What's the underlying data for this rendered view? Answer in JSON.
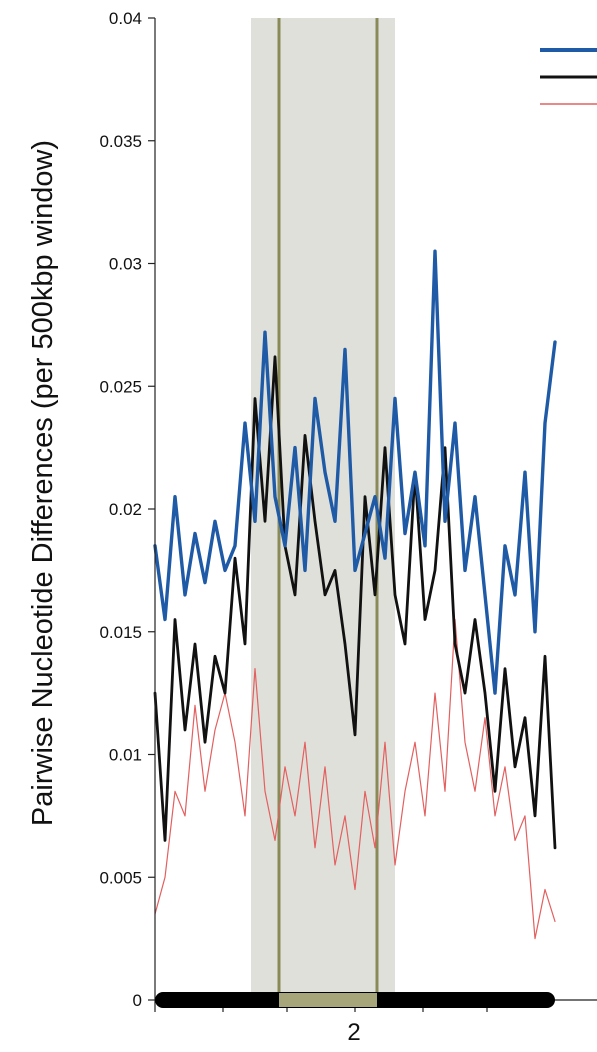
{
  "chart_data": {
    "type": "line",
    "title": "",
    "ylabel": "Pairwise Nucleotide Differences (per 500kbp window)",
    "xlabel": "",
    "ylim": [
      0,
      0.04
    ],
    "yticks": [
      0,
      0.005,
      0.01,
      0.015,
      0.02,
      0.025,
      0.03,
      0.035,
      0.04
    ],
    "ytick_labels": [
      "0",
      "0.005",
      "0.01",
      "0.015",
      "0.02",
      "0.025",
      "0.03",
      "0.035",
      "0.04"
    ],
    "x_category_label": "2",
    "xlim": [
      0,
      1
    ],
    "x": [
      0.0,
      0.025,
      0.05,
      0.075,
      0.1,
      0.125,
      0.15,
      0.175,
      0.2,
      0.225,
      0.25,
      0.275,
      0.3,
      0.325,
      0.35,
      0.375,
      0.4,
      0.425,
      0.45,
      0.475,
      0.5,
      0.525,
      0.55,
      0.575,
      0.6,
      0.625,
      0.65,
      0.675,
      0.7,
      0.725,
      0.75,
      0.775,
      0.8,
      0.825,
      0.85,
      0.875,
      0.9,
      0.925,
      0.95,
      0.975,
      1.0
    ],
    "series": [
      {
        "name": "",
        "color": "#1f5aa6",
        "values": [
          0.0185,
          0.0155,
          0.0205,
          0.0165,
          0.019,
          0.017,
          0.0195,
          0.0175,
          0.0185,
          0.0235,
          0.0195,
          0.0272,
          0.0205,
          0.0185,
          0.0225,
          0.0175,
          0.0245,
          0.0215,
          0.0195,
          0.0265,
          0.0175,
          0.019,
          0.0205,
          0.018,
          0.0245,
          0.019,
          0.0215,
          0.0185,
          0.0305,
          0.0195,
          0.0235,
          0.0175,
          0.0205,
          0.0165,
          0.0125,
          0.0185,
          0.0165,
          0.0215,
          0.015,
          0.0235,
          0.0268
        ]
      },
      {
        "name": "",
        "color": "#111111",
        "values": [
          0.0125,
          0.0065,
          0.0155,
          0.011,
          0.0145,
          0.0105,
          0.014,
          0.0125,
          0.018,
          0.0145,
          0.0245,
          0.0195,
          0.0262,
          0.0185,
          0.0165,
          0.023,
          0.0195,
          0.0165,
          0.0175,
          0.0145,
          0.0108,
          0.0205,
          0.0165,
          0.0225,
          0.0165,
          0.0145,
          0.0215,
          0.0155,
          0.0175,
          0.0225,
          0.0145,
          0.0125,
          0.0155,
          0.0125,
          0.0085,
          0.0135,
          0.0095,
          0.0115,
          0.0075,
          0.014,
          0.0062
        ]
      },
      {
        "name": "",
        "color": "#e26060",
        "values": [
          0.0035,
          0.005,
          0.0085,
          0.0075,
          0.012,
          0.0085,
          0.011,
          0.0125,
          0.0105,
          0.0075,
          0.0135,
          0.0085,
          0.0065,
          0.0095,
          0.0075,
          0.0105,
          0.0062,
          0.0095,
          0.0055,
          0.0075,
          0.0045,
          0.0085,
          0.0062,
          0.0105,
          0.0055,
          0.0085,
          0.0105,
          0.0075,
          0.0125,
          0.0085,
          0.0155,
          0.0105,
          0.0085,
          0.0115,
          0.0075,
          0.0095,
          0.0065,
          0.0075,
          0.0025,
          0.0045,
          0.0032
        ]
      }
    ],
    "highlight_band": {
      "x_start": 0.24,
      "x_end": 0.6,
      "color": "#e0e0da"
    },
    "vertical_lines": {
      "x": [
        0.31,
        0.555
      ],
      "color": "#8a8a58"
    },
    "chromosome_bar": {
      "x_start": 0.0,
      "x_end": 1.0,
      "color": "#000000",
      "centromere_x_start": 0.31,
      "centromere_x_end": 0.555,
      "centromere_color": "#a6a67a"
    },
    "x_minor_ticks": [
      0.0,
      0.17,
      0.33,
      0.5,
      0.67,
      0.83
    ],
    "legend_colors": [
      "#1f5aa6",
      "#111111",
      "#e26060"
    ],
    "legend_placement": "top-right",
    "grid": false
  }
}
